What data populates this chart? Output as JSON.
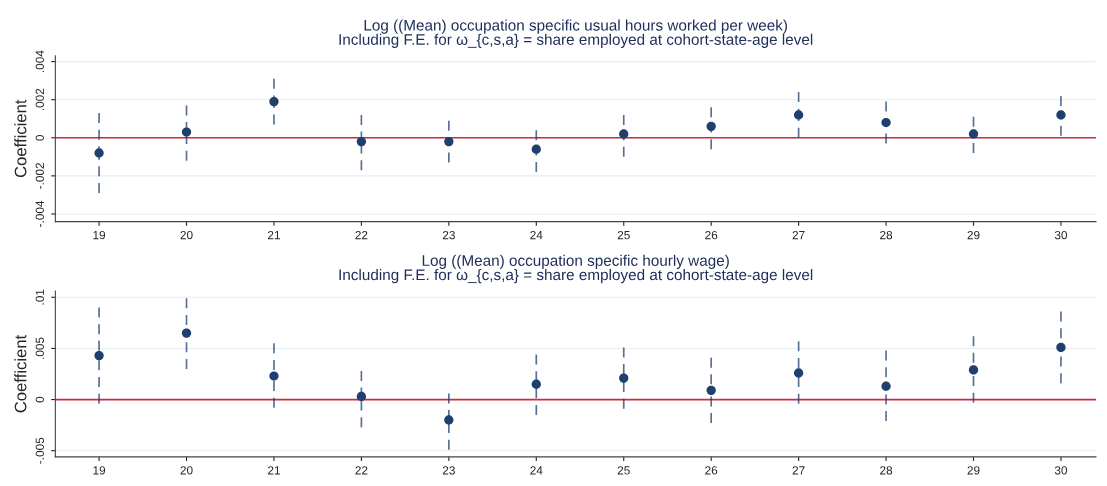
{
  "chart_data": [
    {
      "type": "scatter",
      "title": "Log ((Mean) occupation specific usual hours worked per week)",
      "subtitle": "Including F.E. for ω_{c,s,a} = share employed at cohort-state-age level",
      "ylabel": "Coefficient",
      "x": [
        19,
        20,
        21,
        22,
        23,
        24,
        25,
        26,
        27,
        28,
        29,
        30
      ],
      "series": [
        {
          "color": "#1f3f6e",
          "values": [
            -0.0008,
            0.0003,
            0.0019,
            -0.0002,
            -0.0002,
            -0.0006,
            0.0002,
            0.0006,
            0.0012,
            0.0008,
            0.0002,
            0.0012
          ],
          "errors": [
            [
              -0.0029,
              0.0013
            ],
            [
              -0.0012,
              0.0017
            ],
            [
              0.0007,
              0.0031
            ],
            [
              -0.0017,
              0.0012
            ],
            [
              -0.0013,
              0.0009
            ],
            [
              -0.0018,
              0.0004
            ],
            [
              -0.001,
              0.0012
            ],
            [
              -0.0006,
              0.0016
            ],
            [
              0.0,
              0.0024
            ],
            [
              -0.0003,
              0.0019
            ],
            [
              -0.0008,
              0.0011
            ],
            [
              0.0001,
              0.0022
            ]
          ]
        }
      ],
      "xlim": [
        18.5,
        30.4
      ],
      "xticks": [
        19,
        20,
        21,
        22,
        23,
        24,
        25,
        26,
        27,
        28,
        29,
        30
      ],
      "ylim": [
        -0.0044,
        0.0043
      ],
      "yticks": [
        {
          "value": -0.004,
          "label": "-.004"
        },
        {
          "value": -0.002,
          "label": "-.002"
        },
        {
          "value": 0,
          "label": "0"
        },
        {
          "value": 0.002,
          "label": ".002"
        },
        {
          "value": 0.004,
          "label": ".004"
        }
      ],
      "ref_lines": [
        {
          "axis": "y",
          "value": 0,
          "color": "#d0283c"
        }
      ],
      "grid": "y",
      "marker": "circle",
      "legend": false
    },
    {
      "type": "scatter",
      "title": "Log ((Mean) occupation specific hourly wage)",
      "subtitle": "Including F.E. for ω_{c,s,a} = share employed at cohort-state-age level",
      "ylabel": "Coefficient",
      "x": [
        19,
        20,
        21,
        22,
        23,
        24,
        25,
        26,
        27,
        28,
        29,
        30
      ],
      "series": [
        {
          "color": "#1f3f6e",
          "values": [
            0.0043,
            0.0065,
            0.0023,
            0.0003,
            -0.002,
            0.0015,
            0.0021,
            0.0009,
            0.0026,
            0.0013,
            0.0029,
            0.0051
          ],
          "errors": [
            [
              -0.0004,
              0.009
            ],
            [
              0.003,
              0.0099
            ],
            [
              -0.0008,
              0.0055
            ],
            [
              -0.0027,
              0.0028
            ],
            [
              -0.0049,
              0.0006
            ],
            [
              -0.0015,
              0.0044
            ],
            [
              -0.0009,
              0.0051
            ],
            [
              -0.0023,
              0.0041
            ],
            [
              -0.0004,
              0.0057
            ],
            [
              -0.0021,
              0.0048
            ],
            [
              -0.0003,
              0.0062
            ],
            [
              0.0016,
              0.0086
            ]
          ]
        }
      ],
      "xlim": [
        18.5,
        30.4
      ],
      "xticks": [
        19,
        20,
        21,
        22,
        23,
        24,
        25,
        26,
        27,
        28,
        29,
        30
      ],
      "ylim": [
        -0.0056,
        0.0106
      ],
      "yticks": [
        {
          "value": -0.005,
          "label": "-.005"
        },
        {
          "value": 0,
          "label": "0"
        },
        {
          "value": 0.005,
          "label": ".005"
        },
        {
          "value": 0.01,
          "label": ".01"
        }
      ],
      "ref_lines": [
        {
          "axis": "y",
          "value": 0,
          "color": "#d0283c"
        }
      ],
      "grid": "y",
      "marker": "circle",
      "legend": false
    }
  ]
}
